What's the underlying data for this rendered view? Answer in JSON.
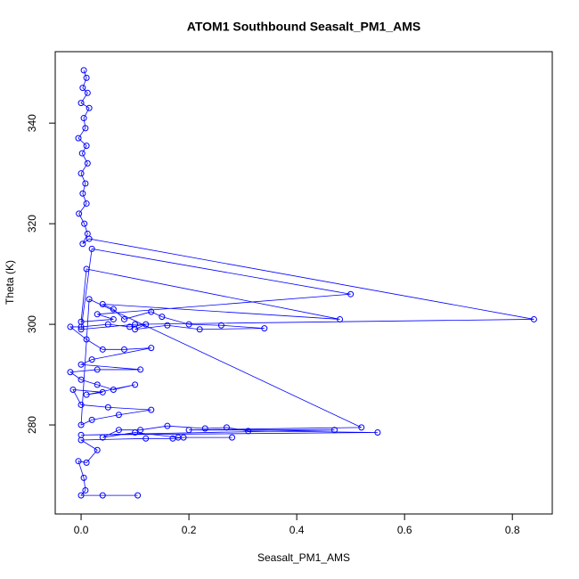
{
  "chart_data": {
    "type": "line",
    "title": "ATOM1 Southbound Seasalt_PM1_AMS",
    "x_label": "Seasalt_PM1_AMS",
    "y_label": "Theta (K)",
    "color": "#0000ff",
    "markers": "circle",
    "xlim": [
      -0.048,
      0.874
    ],
    "ylim": [
      262.3,
      354.2
    ],
    "xticks": [
      {
        "value": 0,
        "label": "0.0"
      },
      0.2,
      0.4,
      0.6,
      0.8
    ],
    "yticks": [
      280,
      300,
      320,
      340
    ],
    "x": [
      0.005,
      0.01,
      0.003,
      0.012,
      0.0,
      0.015,
      0.005,
      0.008,
      -0.005,
      0.01,
      0.002,
      0.012,
      0.0,
      0.008,
      0.003,
      0.01,
      -0.004,
      0.006,
      0.012,
      0.003,
      0.015,
      0.84,
      0.1,
      0.0,
      0.02,
      0.5,
      0.03,
      0.06,
      0.0,
      0.01,
      0.48,
      0.04,
      0.06,
      0.08,
      0.13,
      0.15,
      0.2,
      0.26,
      0.34,
      0.22,
      0.16,
      0.1,
      0.12,
      0.09,
      0.05,
      0.0,
      -0.02,
      0.01,
      0.04,
      0.08,
      0.13,
      0.02,
      0.0,
      0.11,
      0.03,
      -0.02,
      0.0,
      0.03,
      0.06,
      0.1,
      0.01,
      0.04,
      -0.015,
      0.0,
      0.05,
      0.13,
      0.07,
      0.02,
      0.0,
      0.015,
      0.52,
      0.2,
      0.47,
      0.0,
      0.55,
      0.31,
      0.27,
      0.23,
      0.16,
      0.11,
      0.07,
      0.04,
      0.1,
      0.18,
      0.28,
      0.19,
      0.17,
      0.12,
      0.0,
      0.03,
      0.01,
      -0.005,
      0.005,
      0.008,
      0.0,
      0.04,
      0.105
    ],
    "values": [
      350.5,
      349,
      347,
      346,
      344,
      343,
      341,
      339,
      337,
      335.5,
      334,
      332,
      330,
      328,
      326,
      324,
      322,
      320,
      318,
      316,
      317,
      301,
      300,
      299,
      315,
      306,
      302,
      301,
      300.5,
      311,
      301,
      304,
      303,
      301,
      302.5,
      301.5,
      300,
      299.8,
      299.2,
      299,
      299.8,
      299,
      300,
      299.5,
      300,
      299.5,
      299.5,
      297,
      295,
      295,
      295.3,
      293,
      292,
      291,
      291,
      290.5,
      289,
      288,
      287,
      288,
      286,
      286.5,
      287,
      284,
      283.5,
      283,
      282,
      281,
      280,
      305,
      279.5,
      279,
      279,
      278,
      278.5,
      278.8,
      279.5,
      279.3,
      279.8,
      279,
      279,
      277.5,
      278.5,
      277.5,
      277.5,
      277.5,
      277.3,
      277.3,
      277,
      275,
      272.5,
      272.8,
      269.5,
      267,
      266,
      266,
      266
    ]
  }
}
